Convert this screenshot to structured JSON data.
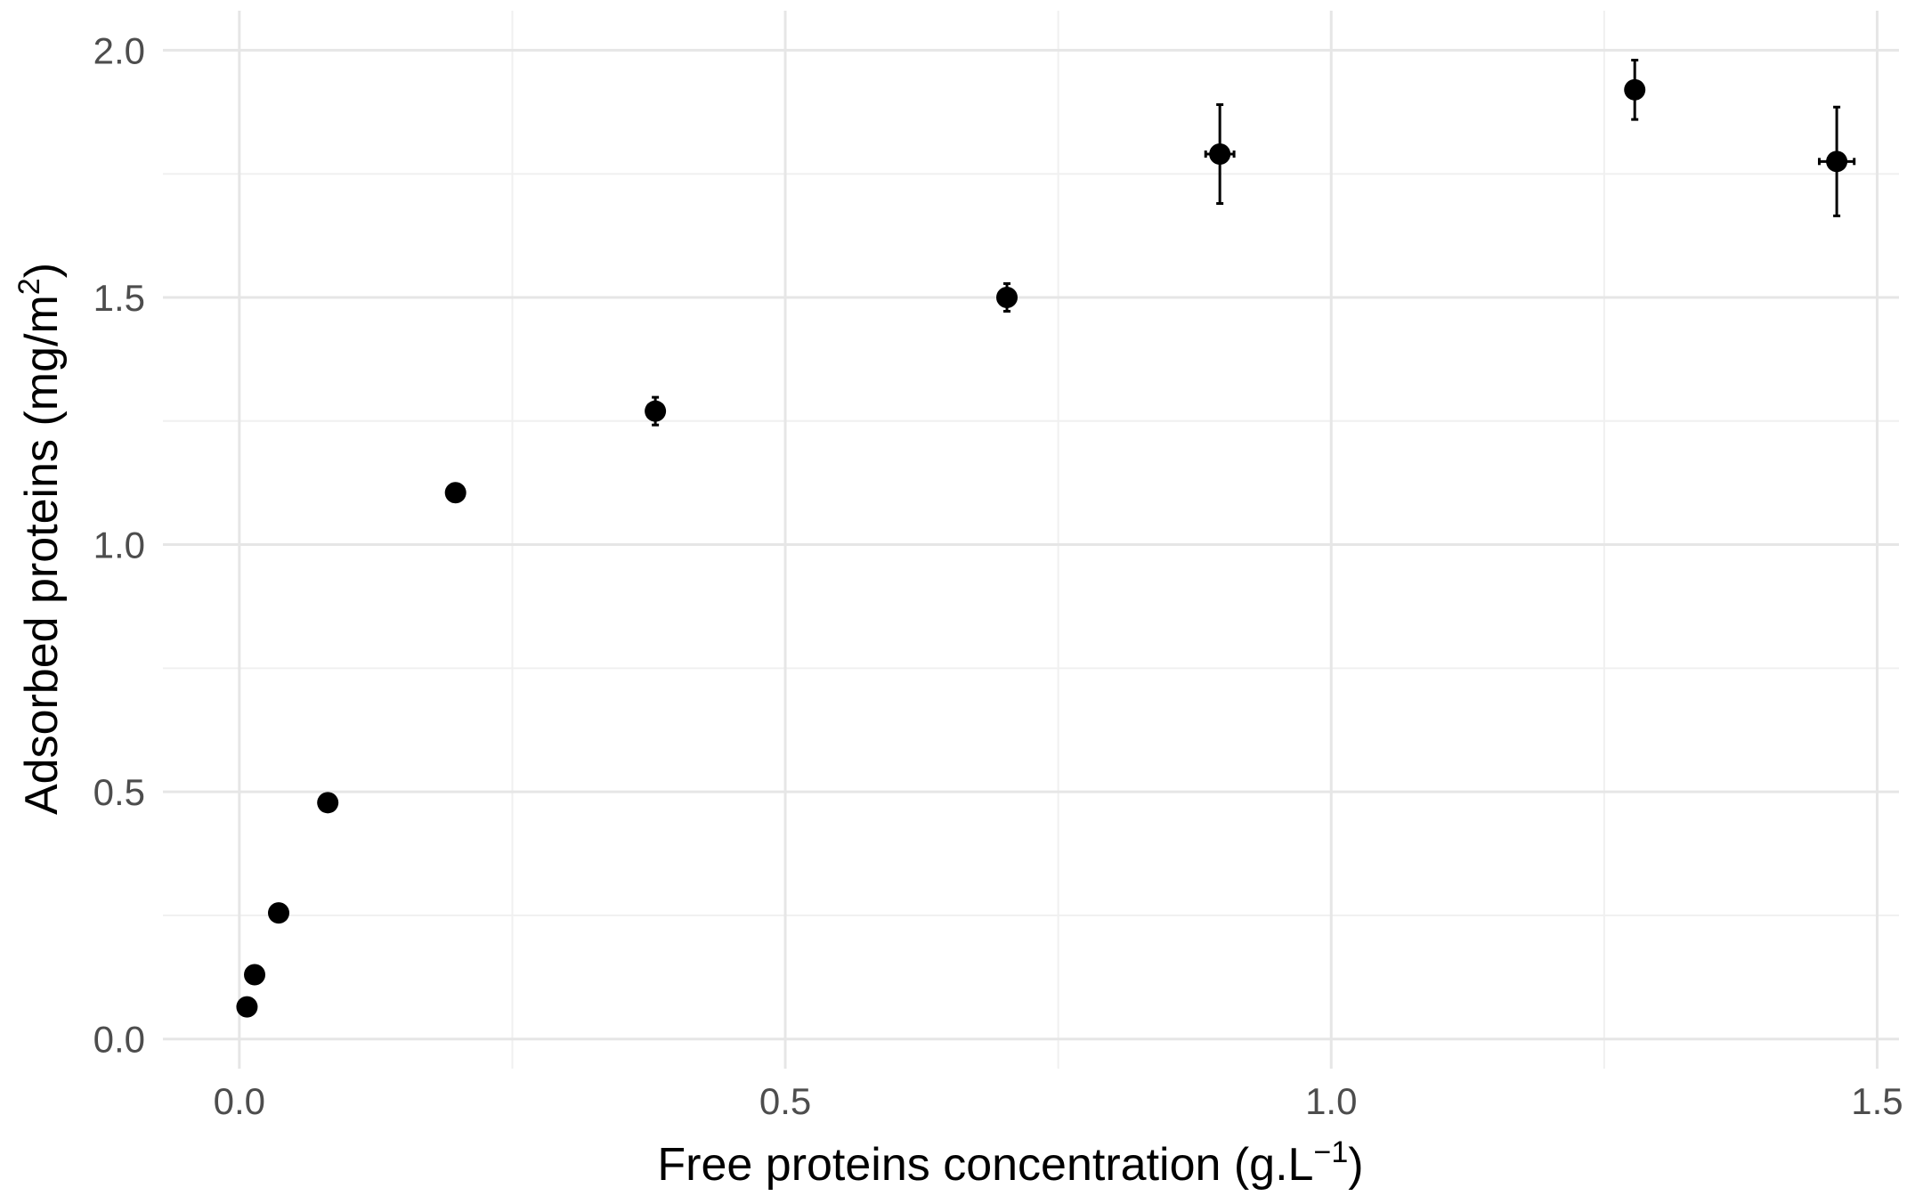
{
  "chart_data": {
    "type": "scatter",
    "title": "",
    "xlabel": {
      "base": "Free proteins concentration (g.L",
      "sup": "−1",
      "tail": ")"
    },
    "ylabel": {
      "base": "Adsorbed proteins (mg/m",
      "sup": "2",
      "tail": ")"
    },
    "xlim": [
      -0.07,
      1.52
    ],
    "ylim": [
      -0.06,
      2.08
    ],
    "x_ticks": [
      0.0,
      0.5,
      1.0,
      1.5
    ],
    "x_tick_labels": [
      "0.0",
      "0.5",
      "1.0",
      "1.5"
    ],
    "x_minor_ticks": [
      0.25,
      0.75,
      1.25
    ],
    "y_ticks": [
      0.0,
      0.5,
      1.0,
      1.5,
      2.0
    ],
    "y_tick_labels": [
      "0.0",
      "0.5",
      "1.0",
      "1.5",
      "2.0"
    ],
    "y_minor_ticks": [
      0.25,
      0.75,
      1.25,
      1.75
    ],
    "grid": true,
    "legend": "none",
    "marker_color": "#000000",
    "points": [
      {
        "x": 0.007,
        "y": 0.065,
        "y_err": 0.0,
        "x_err": 0.0
      },
      {
        "x": 0.014,
        "y": 0.13,
        "y_err": 0.0,
        "x_err": 0.0
      },
      {
        "x": 0.036,
        "y": 0.255,
        "y_err": 0.0,
        "x_err": 0.0
      },
      {
        "x": 0.081,
        "y": 0.478,
        "y_err": 0.0,
        "x_err": 0.0
      },
      {
        "x": 0.198,
        "y": 1.105,
        "y_err": 0.0,
        "x_err": 0.0
      },
      {
        "x": 0.381,
        "y": 1.27,
        "y_err": 0.028,
        "x_err": 0.0
      },
      {
        "x": 0.703,
        "y": 1.5,
        "y_err": 0.028,
        "x_err": 0.0
      },
      {
        "x": 0.898,
        "y": 1.79,
        "y_err": 0.1,
        "x_err": 0.013
      },
      {
        "x": 1.278,
        "y": 1.92,
        "y_err": 0.06,
        "x_err": 0.0
      },
      {
        "x": 1.463,
        "y": 1.775,
        "y_err": 0.11,
        "x_err": 0.016
      }
    ]
  }
}
